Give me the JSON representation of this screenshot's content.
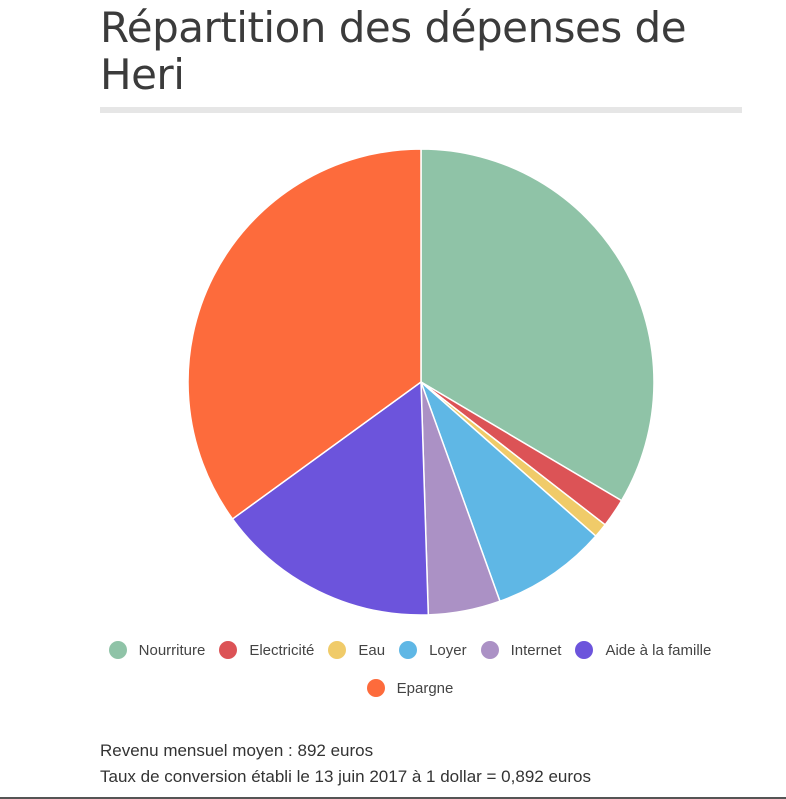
{
  "title": "Répartition des dépenses de Heri",
  "chart_data": {
    "type": "pie",
    "title": "Répartition des dépenses de Heri",
    "slices": [
      {
        "label": "Nourriture",
        "value": 33.5,
        "color": "#8fc3a7"
      },
      {
        "label": "Electricité",
        "value": 2.0,
        "color": "#dc5356"
      },
      {
        "label": "Eau",
        "value": 1.0,
        "color": "#f0cb69"
      },
      {
        "label": "Loyer",
        "value": 8.0,
        "color": "#5fb7e5"
      },
      {
        "label": "Internet",
        "value": 5.0,
        "color": "#ab91c5"
      },
      {
        "label": "Aide à la famille",
        "value": 15.5,
        "color": "#6c54dc"
      },
      {
        "label": "Epargne",
        "value": 35.0,
        "color": "#fd6b3c"
      }
    ],
    "legend_position": "bottom"
  },
  "notes": {
    "income": "Revenu mensuel moyen : 892 euros",
    "conversion": "Taux de conversion établi le 13 juin 2017 à 1 dollar = 0,892 euros"
  }
}
